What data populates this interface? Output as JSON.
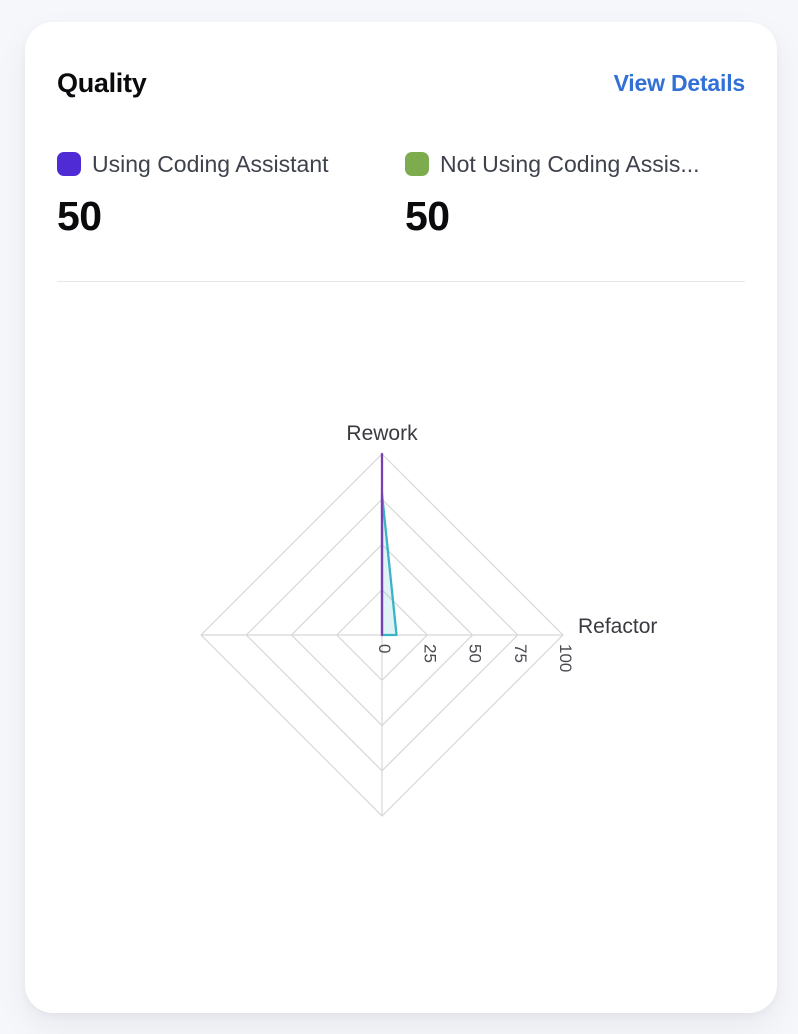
{
  "card": {
    "title": "Quality",
    "view_details_label": "View Details"
  },
  "legend": {
    "items": [
      {
        "label": "Using Coding Assistant",
        "value": "50",
        "color": "#4e2bd4"
      },
      {
        "label": "Not Using Coding Assis...",
        "value": "50",
        "color": "#7cac4d"
      }
    ]
  },
  "chart_data": {
    "type": "radar",
    "title": "Quality",
    "max": 100,
    "indicators": [
      {
        "name": "Rework"
      },
      {
        "name": "Refactor"
      },
      {
        "name": ""
      },
      {
        "name": ""
      }
    ],
    "rings": [
      25,
      50,
      75,
      100
    ],
    "tick_labels": [
      "0",
      "25",
      "50",
      "75",
      "100"
    ],
    "series": [
      {
        "name": "Using Coding Assistant",
        "color": "#7a40b2",
        "fill": "rgba(122,64,178,0.15)",
        "values": [
          100,
          0,
          0,
          0
        ]
      },
      {
        "name": "Not Using Coding Assistant",
        "color": "#3bb3c6",
        "fill": "rgba(59,179,198,0.16)",
        "values": [
          78,
          8,
          0,
          0
        ]
      }
    ],
    "grid_color": "#d7d7db",
    "legend_position": "top",
    "grid": true
  }
}
